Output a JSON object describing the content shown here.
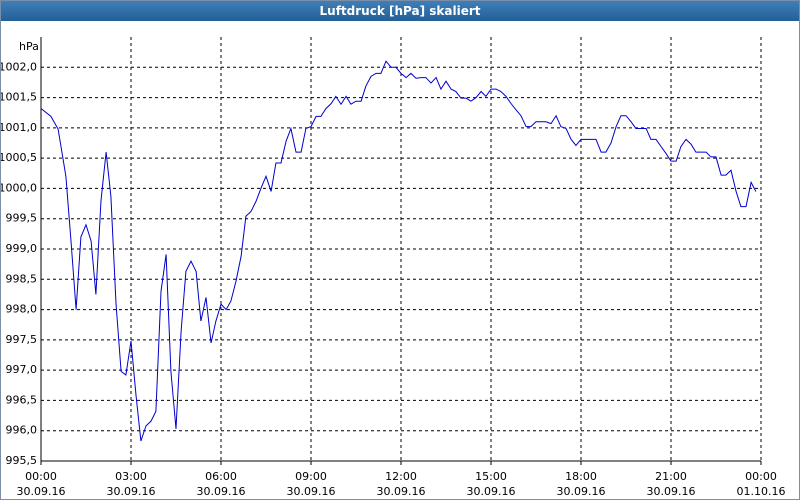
{
  "chart_data": {
    "type": "line",
    "title": "Luftdruck [hPa] skaliert",
    "y_unit": "hPa",
    "color": "#0000cc",
    "grid": true,
    "x": [
      0,
      0.33,
      0.57,
      0.83,
      1.0,
      1.17,
      1.33,
      1.5,
      1.67,
      1.83,
      2.0,
      2.17,
      2.33,
      2.5,
      2.67,
      2.83,
      3.0,
      3.17,
      3.33,
      3.5,
      3.67,
      3.83,
      4.0,
      4.17,
      4.33,
      4.5,
      4.67,
      4.83,
      5.0,
      5.17,
      5.33,
      5.5,
      5.67,
      5.83,
      6.0,
      6.17,
      6.33,
      6.5,
      6.67,
      6.83,
      7.0,
      7.17,
      7.33,
      7.5,
      7.67,
      7.83,
      8.0,
      8.17,
      8.33,
      8.5,
      8.67,
      8.83,
      9.0,
      9.17,
      9.33,
      9.5,
      9.67,
      9.83,
      10.0,
      10.17,
      10.33,
      10.5,
      10.67,
      10.83,
      11.0,
      11.17,
      11.33,
      11.5,
      11.67,
      11.83,
      12.0,
      12.17,
      12.33,
      12.5,
      12.67,
      12.83,
      13.0,
      13.17,
      13.33,
      13.5,
      13.67,
      13.83,
      14.0,
      14.17,
      14.33,
      14.5,
      14.67,
      14.83,
      15.0,
      15.17,
      15.33,
      15.5,
      15.67,
      15.83,
      16.0,
      16.17,
      16.33,
      16.5,
      16.67,
      16.83,
      17.0,
      17.17,
      17.33,
      17.5,
      17.67,
      17.83,
      18.0,
      18.17,
      18.33,
      18.5,
      18.67,
      18.83,
      19.0,
      19.17,
      19.33,
      19.5,
      19.67,
      19.83,
      20.0,
      20.17,
      20.33,
      20.5,
      20.67,
      20.83,
      21.0,
      21.17,
      21.33,
      21.5,
      21.67,
      21.83,
      22.0,
      22.17,
      22.33,
      22.5,
      22.67,
      22.83,
      23.0,
      23.17,
      23.33,
      23.5,
      23.67,
      23.83
    ],
    "values": [
      1001.32,
      1001.19,
      1000.98,
      1000.2,
      999.13,
      998.0,
      999.2,
      999.4,
      999.13,
      998.25,
      999.8,
      1000.6,
      999.87,
      998.1,
      996.98,
      996.92,
      997.48,
      996.57,
      995.83,
      996.08,
      996.16,
      996.32,
      998.3,
      998.91,
      996.98,
      996.03,
      997.64,
      998.63,
      998.8,
      998.63,
      997.81,
      998.2,
      997.45,
      997.81,
      998.09,
      998.0,
      998.14,
      998.47,
      998.88,
      999.54,
      999.62,
      999.79,
      1000.0,
      1000.2,
      999.95,
      1000.42,
      1000.42,
      1000.78,
      1000.99,
      1000.6,
      1000.6,
      1000.99,
      1001.02,
      1001.19,
      1001.19,
      1001.32,
      1001.4,
      1001.52,
      1001.39,
      1001.52,
      1001.39,
      1001.44,
      1001.44,
      1001.69,
      1001.85,
      1001.9,
      1001.9,
      1002.1,
      1002.0,
      1002.0,
      1001.9,
      1001.83,
      1001.9,
      1001.82,
      1001.83,
      1001.83,
      1001.74,
      1001.83,
      1001.64,
      1001.77,
      1001.64,
      1001.6,
      1001.49,
      1001.49,
      1001.44,
      1001.5,
      1001.6,
      1001.52,
      1001.64,
      1001.64,
      1001.6,
      1001.52,
      1001.4,
      1001.3,
      1001.2,
      1001.02,
      1001.02,
      1001.1,
      1001.1,
      1001.1,
      1001.07,
      1001.2,
      1001.02,
      1000.99,
      1000.81,
      1000.71,
      1000.81,
      1000.81,
      1000.81,
      1000.81,
      1000.6,
      1000.6,
      1000.75,
      1001.02,
      1001.2,
      1001.2,
      1001.1,
      1000.99,
      1000.99,
      1000.99,
      1000.81,
      1000.81,
      1000.69,
      1000.58,
      1000.45,
      1000.45,
      1000.69,
      1000.81,
      1000.73,
      1000.6,
      1000.6,
      1000.6,
      1000.52,
      1000.52,
      1000.22,
      1000.22,
      1000.3,
      999.95,
      999.7,
      999.7,
      1000.1,
      999.95
    ],
    "xlim": [
      0,
      24
    ],
    "xticks": [
      {
        "value": 0,
        "label": "00:00\n30.09.16"
      },
      {
        "value": 3,
        "label": "03:00\n30.09.16"
      },
      {
        "value": 6,
        "label": "06:00\n30.09.16"
      },
      {
        "value": 9,
        "label": "09:00\n30.09.16"
      },
      {
        "value": 12,
        "label": "12:00\n30.09.16"
      },
      {
        "value": 15,
        "label": "15:00\n30.09.16"
      },
      {
        "value": 18,
        "label": "18:00\n30.09.16"
      },
      {
        "value": 21,
        "label": "21:00\n30.09.16"
      },
      {
        "value": 24,
        "label": "00:00\n01.10.16"
      }
    ],
    "ylim": [
      995.5,
      1002.5
    ],
    "yticks": [
      {
        "value": 995.5,
        "label": "995,5"
      },
      {
        "value": 996,
        "label": "996,0"
      },
      {
        "value": 996.5,
        "label": "996,5"
      },
      {
        "value": 997,
        "label": "997,0"
      },
      {
        "value": 997.5,
        "label": "997,5"
      },
      {
        "value": 998,
        "label": "998,0"
      },
      {
        "value": 998.5,
        "label": "998,5"
      },
      {
        "value": 999,
        "label": "999,0"
      },
      {
        "value": 999.5,
        "label": "999,5"
      },
      {
        "value": 1000,
        "label": "1000,0"
      },
      {
        "value": 1000.5,
        "label": "1000,5"
      },
      {
        "value": 1001,
        "label": "1001,0"
      },
      {
        "value": 1001.5,
        "label": "1001,5"
      },
      {
        "value": 1002,
        "label": "1002,0"
      }
    ]
  }
}
